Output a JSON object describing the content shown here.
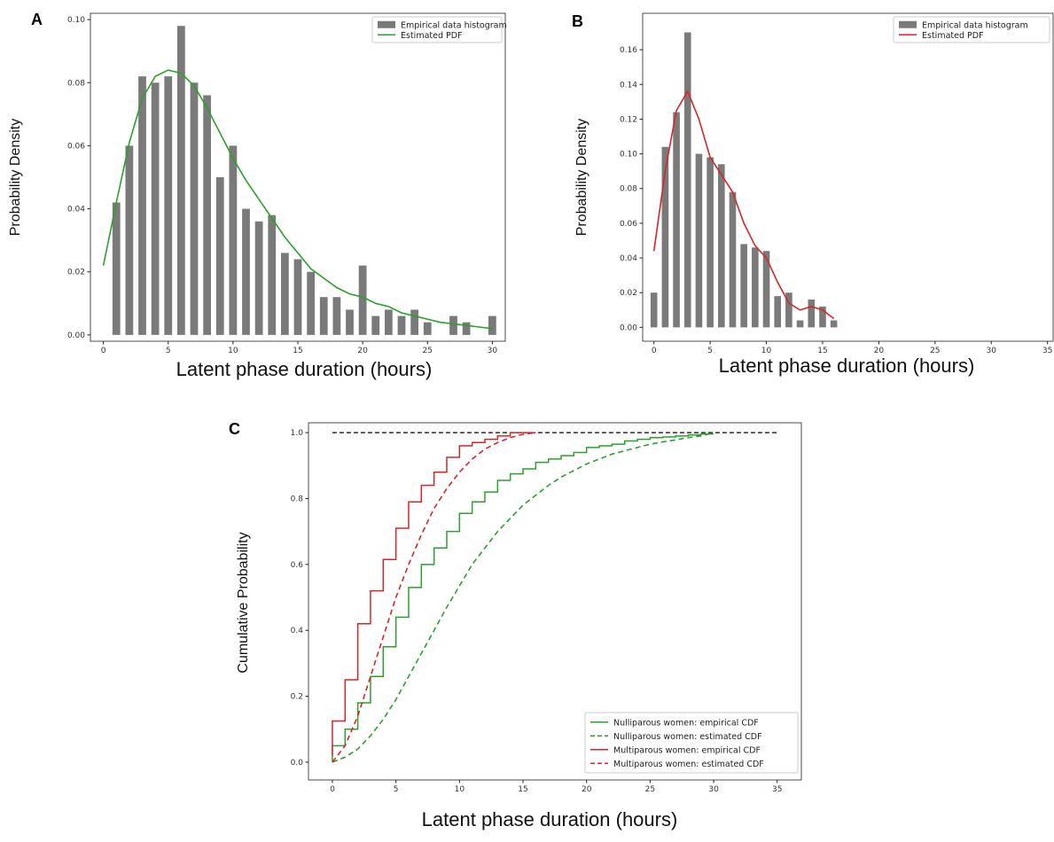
{
  "chart_data": [
    {
      "type": "histogram",
      "panel_label": "A",
      "y_label": "Probability Density",
      "x_label": "Latent phase duration (hours)",
      "bar_name": "Empirical data histogram",
      "bar_color": "#7a7a7a",
      "bins": [
        0.5,
        1.5,
        2.5,
        3.5,
        4.5,
        5.5,
        6.5,
        7.5,
        8.5,
        9.5,
        10.5,
        11.5,
        12.5,
        13.5,
        14.5,
        15.5,
        16.5,
        17.5,
        18.5,
        19.5,
        20.5,
        21.5,
        22.5,
        23.5,
        24.5,
        25.5,
        26.5,
        27.5,
        28.5,
        29.5,
        30.5
      ],
      "counts": [
        0.042,
        0.06,
        0.082,
        0.08,
        0.082,
        0.098,
        0.08,
        0.076,
        0.05,
        0.06,
        0.04,
        0.036,
        0.038,
        0.026,
        0.024,
        0.02,
        0.012,
        0.012,
        0.008,
        0.022,
        0.006,
        0.008,
        0.006,
        0.008,
        0.004,
        0,
        0.006,
        0.004,
        0,
        0.006
      ],
      "series": [
        {
          "name": "Estimated PDF",
          "color": "#2ca02c",
          "x": [
            0,
            1,
            2,
            3,
            4,
            5,
            6,
            7,
            8,
            9,
            10,
            11,
            12,
            13,
            14,
            15,
            16,
            17,
            18,
            19,
            20,
            21,
            22,
            23,
            24,
            25,
            26,
            27,
            28,
            29,
            30
          ],
          "values": [
            0.022,
            0.042,
            0.061,
            0.075,
            0.082,
            0.084,
            0.083,
            0.079,
            0.072,
            0.064,
            0.056,
            0.049,
            0.043,
            0.037,
            0.031,
            0.026,
            0.021,
            0.018,
            0.015,
            0.013,
            0.012,
            0.01,
            0.009,
            0.007,
            0.006,
            0.005,
            0.004,
            0.0035,
            0.003,
            0.0025,
            0.002
          ]
        }
      ],
      "xlim": [
        -1,
        31
      ],
      "ylim": [
        -0.002,
        0.102
      ],
      "xticks": [
        0,
        5,
        10,
        15,
        20,
        25,
        30
      ],
      "yticks": [
        {
          "value": 0,
          "label": "0.00"
        },
        {
          "value": 0.02,
          "label": "0.02"
        },
        {
          "value": 0.04,
          "label": "0.04"
        },
        {
          "value": 0.06,
          "label": "0.06"
        },
        {
          "value": 0.08,
          "label": "0.08"
        },
        {
          "value": 0.1,
          "label": "0.10"
        }
      ],
      "legend": "upper right"
    },
    {
      "type": "histogram",
      "panel_label": "B",
      "y_label": "Probability Density",
      "x_label": "Latent phase duration (hours)",
      "bar_name": "Empirical data histogram",
      "bar_color": "#7a7a7a",
      "bins": [
        -0.5,
        0.5,
        1.5,
        2.5,
        3.5,
        4.5,
        5.5,
        6.5,
        7.5,
        8.5,
        9.5,
        10.5,
        11.5,
        12.5,
        13.5,
        14.5,
        15.5,
        16.5
      ],
      "counts": [
        0.02,
        0.104,
        0.124,
        0.17,
        0.1,
        0.098,
        0.094,
        0.078,
        0.048,
        0.046,
        0.044,
        0.018,
        0.02,
        0.004,
        0.016,
        0.012,
        0.004
      ],
      "series": [
        {
          "name": "Estimated PDF",
          "color": "#d62728",
          "x": [
            0,
            1,
            2,
            3,
            4,
            5,
            6,
            7,
            8,
            9,
            10,
            11,
            12,
            13,
            14,
            15,
            16
          ],
          "values": [
            0.044,
            0.09,
            0.125,
            0.136,
            0.12,
            0.098,
            0.088,
            0.078,
            0.06,
            0.047,
            0.04,
            0.026,
            0.014,
            0.01,
            0.012,
            0.01,
            0.005
          ]
        }
      ],
      "xlim": [
        -1,
        35.5
      ],
      "ylim": [
        -0.008,
        0.181
      ],
      "xticks": [
        0,
        5,
        10,
        15,
        20,
        25,
        30,
        35
      ],
      "yticks": [
        {
          "value": 0,
          "label": "0.00"
        },
        {
          "value": 0.02,
          "label": "0.02"
        },
        {
          "value": 0.04,
          "label": "0.04"
        },
        {
          "value": 0.06,
          "label": "0.06"
        },
        {
          "value": 0.08,
          "label": "0.08"
        },
        {
          "value": 0.1,
          "label": "0.10"
        },
        {
          "value": 0.12,
          "label": "0.12"
        },
        {
          "value": 0.14,
          "label": "0.14"
        },
        {
          "value": 0.16,
          "label": "0.16"
        }
      ],
      "legend": "upper right"
    },
    {
      "type": "line",
      "panel_label": "C",
      "y_label": "Cumulative Probability",
      "x_label": "Latent phase duration (hours)",
      "series": [
        {
          "name": "Nulliparous women: empirical CDF",
          "color": "#2ca02c",
          "dashed": false,
          "step": true,
          "x": [
            0,
            1,
            2,
            3,
            4,
            5,
            6,
            7,
            8,
            9,
            10,
            11,
            12,
            13,
            14,
            15,
            16,
            17,
            18,
            19,
            20,
            21,
            22,
            23,
            24,
            25,
            26,
            27,
            28,
            29,
            30
          ],
          "values": [
            0.0,
            0.05,
            0.1,
            0.18,
            0.26,
            0.35,
            0.44,
            0.53,
            0.6,
            0.65,
            0.7,
            0.755,
            0.79,
            0.82,
            0.855,
            0.875,
            0.89,
            0.91,
            0.92,
            0.93,
            0.94,
            0.955,
            0.96,
            0.965,
            0.975,
            0.98,
            0.985,
            0.987,
            0.99,
            0.993,
            0.996
          ]
        },
        {
          "name": "Nulliparous women: estimated CDF",
          "color": "#2ca02c",
          "dashed": true,
          "step": false,
          "x": [
            0,
            1,
            2,
            3,
            4,
            5,
            6,
            7,
            8,
            9,
            10,
            11,
            12,
            13,
            14,
            15,
            16,
            17,
            18,
            19,
            20,
            21,
            22,
            23,
            24,
            25,
            26,
            27,
            28,
            29,
            30
          ],
          "values": [
            0.0,
            0.015,
            0.04,
            0.08,
            0.13,
            0.19,
            0.26,
            0.33,
            0.4,
            0.47,
            0.535,
            0.6,
            0.65,
            0.7,
            0.74,
            0.78,
            0.81,
            0.84,
            0.865,
            0.885,
            0.905,
            0.92,
            0.935,
            0.945,
            0.955,
            0.965,
            0.972,
            0.978,
            0.985,
            0.99,
            1.0
          ]
        },
        {
          "name": "Multiparous women: empirical CDF",
          "color": "#d62728",
          "dashed": false,
          "step": true,
          "x": [
            0,
            1,
            2,
            3,
            4,
            5,
            6,
            7,
            8,
            9,
            10,
            11,
            12,
            13,
            14,
            15,
            16
          ],
          "values": [
            0.02,
            0.125,
            0.25,
            0.42,
            0.52,
            0.615,
            0.71,
            0.79,
            0.84,
            0.88,
            0.925,
            0.96,
            0.97,
            0.98,
            0.99,
            1.0,
            1.0
          ]
        },
        {
          "name": "Multiparous women: estimated CDF",
          "color": "#d62728",
          "dashed": true,
          "step": false,
          "x": [
            0,
            1,
            2,
            3,
            4,
            5,
            6,
            7,
            8,
            9,
            10,
            11,
            12,
            13,
            14,
            15,
            16
          ],
          "values": [
            0.0,
            0.05,
            0.14,
            0.26,
            0.38,
            0.5,
            0.6,
            0.69,
            0.77,
            0.83,
            0.88,
            0.92,
            0.95,
            0.97,
            0.985,
            0.995,
            1.0
          ]
        }
      ],
      "hline": {
        "y": 1,
        "xmin": 0,
        "xmax": 35,
        "color": "#000000"
      },
      "xlim": [
        -1.88,
        36.9
      ],
      "ylim": [
        -0.054,
        1.03
      ],
      "xticks": [
        0,
        5,
        10,
        15,
        20,
        25,
        30,
        35
      ],
      "yticks": [
        {
          "value": 0,
          "label": "0.0"
        },
        0.2,
        0.4,
        0.6,
        0.8,
        {
          "value": 1,
          "label": "1.0"
        }
      ],
      "legend": "lower right"
    }
  ]
}
